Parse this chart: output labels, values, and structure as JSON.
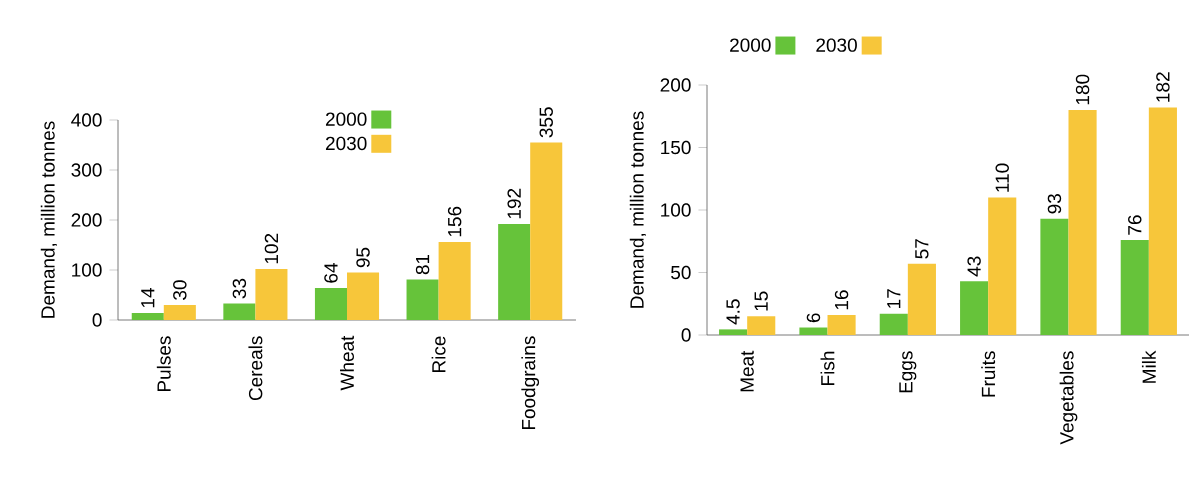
{
  "chart_data": [
    {
      "type": "bar",
      "ylabel": "Demand, million tonnes",
      "categories": [
        "Pulses",
        "Cereals",
        "Wheat",
        "Rice",
        "Foodgrains"
      ],
      "series": [
        {
          "name": "2000",
          "color": "#66c33a",
          "values": [
            14,
            33,
            64,
            81,
            192
          ]
        },
        {
          "name": "2030",
          "color": "#f7c63a",
          "values": [
            30,
            102,
            95,
            156,
            355
          ]
        }
      ],
      "ylim": [
        0,
        400
      ],
      "yticks": [
        0,
        100,
        200,
        300,
        400
      ],
      "data_labels": true,
      "legend": "top",
      "grid": false
    },
    {
      "type": "bar",
      "ylabel": "Demand, million tonnes",
      "categories": [
        "Meat",
        "Fish",
        "Eggs",
        "Fruits",
        "Vegetables",
        "Milk"
      ],
      "series": [
        {
          "name": "2000",
          "color": "#66c33a",
          "values": [
            4.5,
            6,
            17,
            43,
            93,
            76
          ]
        },
        {
          "name": "2030",
          "color": "#f7c63a",
          "values": [
            15,
            16,
            57,
            110,
            180,
            182
          ]
        }
      ],
      "ylim": [
        0,
        200
      ],
      "yticks": [
        0,
        50,
        100,
        150,
        200
      ],
      "data_labels": true,
      "legend": "top",
      "grid": false
    }
  ]
}
